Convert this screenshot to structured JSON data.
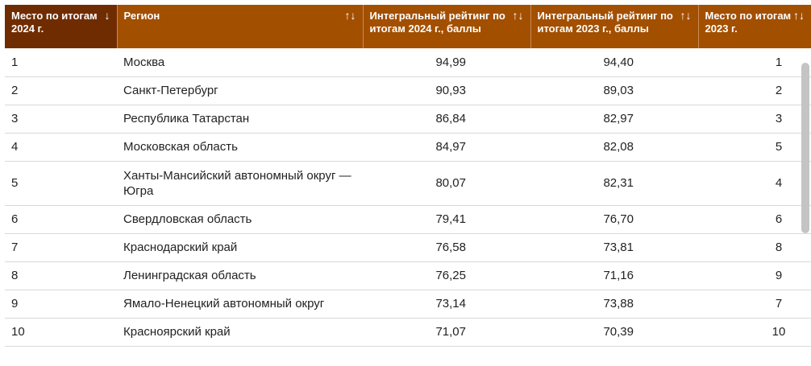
{
  "columns": [
    {
      "label": "Место по итогам 2024 г.",
      "sort": "↓",
      "active": true
    },
    {
      "label": "Регион",
      "sort": "↑↓",
      "active": false
    },
    {
      "label": "Интегральный рейтинг по итогам 2024 г., баллы",
      "sort": "↑↓",
      "active": false
    },
    {
      "label": "Интегральный рейтинг по итогам 2023 г., баллы",
      "sort": "↑↓",
      "active": false
    },
    {
      "label": "Место по итогам 2023 г.",
      "sort": "↑↓",
      "active": false
    }
  ],
  "chart_data": {
    "type": "table",
    "rows": [
      {
        "place_2024": "1",
        "region": "Москва",
        "rating_2024": "94,99",
        "rating_2023": "94,40",
        "place_2023": "1"
      },
      {
        "place_2024": "2",
        "region": "Санкт-Петербург",
        "rating_2024": "90,93",
        "rating_2023": "89,03",
        "place_2023": "2"
      },
      {
        "place_2024": "3",
        "region": "Республика Татарстан",
        "rating_2024": "86,84",
        "rating_2023": "82,97",
        "place_2023": "3"
      },
      {
        "place_2024": "4",
        "region": "Московская область",
        "rating_2024": "84,97",
        "rating_2023": "82,08",
        "place_2023": "5"
      },
      {
        "place_2024": "5",
        "region": "Ханты-Мансийский автономный округ — Югра",
        "rating_2024": "80,07",
        "rating_2023": "82,31",
        "place_2023": "4"
      },
      {
        "place_2024": "6",
        "region": "Свердловская область",
        "rating_2024": "79,41",
        "rating_2023": "76,70",
        "place_2023": "6"
      },
      {
        "place_2024": "7",
        "region": "Краснодарский край",
        "rating_2024": "76,58",
        "rating_2023": "73,81",
        "place_2023": "8"
      },
      {
        "place_2024": "8",
        "region": "Ленинградская область",
        "rating_2024": "76,25",
        "rating_2023": "71,16",
        "place_2023": "9"
      },
      {
        "place_2024": "9",
        "region": "Ямало-Ненецкий автономный округ",
        "rating_2024": "73,14",
        "rating_2023": "73,88",
        "place_2023": "7"
      },
      {
        "place_2024": "10",
        "region": "Красноярский край",
        "rating_2024": "71,07",
        "rating_2023": "70,39",
        "place_2023": "10"
      }
    ]
  },
  "colors": {
    "header": "#a34f00",
    "header_active": "#6f2c00"
  }
}
